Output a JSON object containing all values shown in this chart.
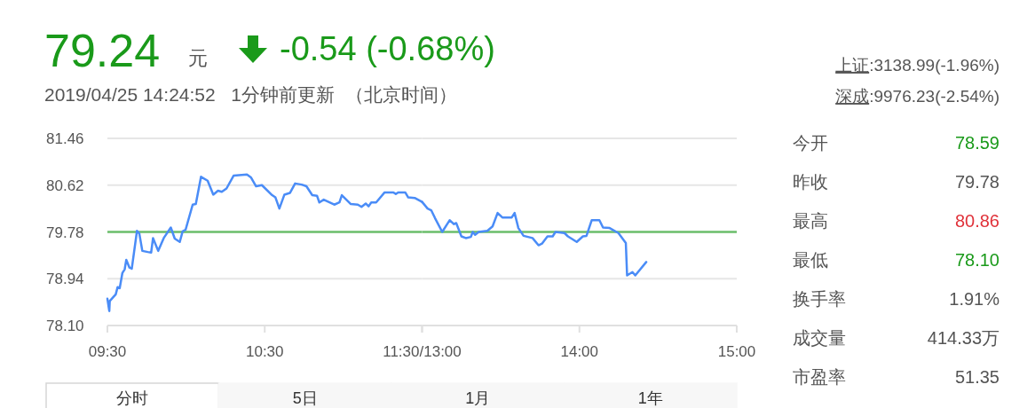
{
  "chart_data": [
    {
      "type": "line",
      "title": "79.24",
      "subtitle": "2019/04/25 14:24:52   1分钟前更新  （北京时间）",
      "annotations": [
        "元",
        "-0.54 (-0.68%)",
        "分时",
        "5日",
        "1月",
        "1年"
      ],
      "xlim": [
        9.5,
        11.5
      ],
      "xticks": [
        {
          "value": 9.5,
          "label": "09:30"
        },
        {
          "value": 10.5,
          "label": "10:30"
        },
        {
          "value": 11.5,
          "label": "11:30/13:00"
        }
      ],
      "ylim": [
        78.1,
        81.46
      ],
      "yticks": [
        {
          "value": 78.1,
          "label": "78.10"
        },
        78.94,
        79.78,
        80.62,
        81.46
      ],
      "grid": "y",
      "ref_lines": [
        {
          "axis": "y",
          "value": 79.78,
          "color": "#6cbf6c"
        }
      ],
      "series": [
        {
          "color": "#4a8cf7",
          "x": [
            9.5,
            9.512,
            9.515,
            9.553,
            9.565,
            9.578,
            9.595,
            9.61,
            9.62,
            9.64,
            9.655,
            9.688,
            9.703,
            9.722,
            9.757,
            9.778,
            9.79,
            9.823,
            9.858,
            9.903,
            9.928,
            9.96,
            9.978,
            9.997,
            10.042,
            10.062,
            10.095,
            10.137,
            10.173,
            10.203,
            10.227,
            10.257,
            10.302,
            10.387,
            10.412,
            10.445,
            10.482,
            10.547,
            10.568,
            10.593,
            10.625,
            10.66,
            10.693,
            10.735,
            10.765,
            10.802,
            10.832,
            10.847,
            10.875,
            10.942,
            10.975,
            10.99,
            11.047,
            11.092,
            11.115,
            11.142,
            11.16,
            11.177,
            11.208,
            11.262,
            11.318,
            11.333,
            11.348,
            11.393,
            11.412,
            11.453,
            11.5
          ],
          "values": [
            78.58,
            78.36,
            78.54,
            78.66,
            78.79,
            78.77,
            79.04,
            79.11,
            79.28,
            79.14,
            79.12,
            79.8,
            79.75,
            79.44,
            79.42,
            79.41,
            79.67,
            79.44,
            79.67,
            79.86,
            79.66,
            79.6,
            79.79,
            79.82,
            80.27,
            80.28,
            80.77,
            80.7,
            80.45,
            80.52,
            80.5,
            80.56,
            80.79,
            80.81,
            80.76,
            80.6,
            80.62,
            80.44,
            80.4,
            80.2,
            80.45,
            80.48,
            80.65,
            80.63,
            80.6,
            80.44,
            80.43,
            80.31,
            80.36,
            80.27,
            80.31,
            80.44,
            80.28,
            80.27,
            80.23,
            80.29,
            80.24,
            80.31,
            80.31,
            80.49,
            80.49,
            80.46,
            80.49,
            80.49,
            80.4,
            80.39,
            80.32
          ]
        }
      ]
    },
    {
      "type": "line",
      "xlim": [
        13,
        15
      ],
      "xticks": [
        {
          "value": 13,
          "label": null
        },
        {
          "value": 14,
          "label": "14:00"
        },
        {
          "value": 15,
          "label": "15:00"
        }
      ],
      "ylim": [
        78.1,
        81.46
      ],
      "tick_labels": "x",
      "yticks": [
        78.1,
        78.94,
        79.78,
        80.62,
        81.46
      ],
      "grid": "y",
      "ref_lines": [
        {
          "axis": "y",
          "value": 79.78,
          "color": "#6cbf6c"
        }
      ],
      "series": [
        {
          "color": "#4a8cf7",
          "x": [
            13,
            13.035,
            13.058,
            13.082,
            13.128,
            13.175,
            13.203,
            13.217,
            13.25,
            13.278,
            13.31,
            13.322,
            13.337,
            13.36,
            13.415,
            13.448,
            13.48,
            13.51,
            13.57,
            13.588,
            13.612,
            13.645,
            13.702,
            13.74,
            13.762,
            13.797,
            13.83,
            13.848,
            13.905,
            13.927,
            13.983,
            14.022,
            14.045,
            14.078,
            14.127,
            14.15,
            14.192,
            14.248,
            14.295,
            14.303,
            14.337,
            14.355,
            14.425
          ],
          "values": [
            80.32,
            80.2,
            80.17,
            80.03,
            79.78,
            79.99,
            79.92,
            79.94,
            79.7,
            79.67,
            79.69,
            79.78,
            79.73,
            79.78,
            79.8,
            79.88,
            80.12,
            80.04,
            80.04,
            80.12,
            79.85,
            79.71,
            79.67,
            79.54,
            79.57,
            79.7,
            79.7,
            79.78,
            79.76,
            79.7,
            79.6,
            79.7,
            79.71,
            79.99,
            79.99,
            79.86,
            79.85,
            79.76,
            79.58,
            79.0,
            79.06,
            79.0,
            79.24
          ]
        }
      ]
    },
    {
      "type": "other",
      "annotations": [
        "上证:3138.99(-1.96%)",
        "深成:9976.23(-2.54%)"
      ],
      "categories": [
        "今开",
        "昨收",
        "最高",
        "最低",
        "换手率",
        "成交量",
        "市盈率"
      ],
      "value_labels": [
        "78.59",
        "79.78",
        "80.86",
        "78.10",
        "1.91%",
        "414.33万",
        "51.35"
      ],
      "colors": [
        "#1a9a1a",
        "#555555",
        "#e0323a",
        "#1a9a1a",
        "#555555",
        "#555555",
        "#555555"
      ]
    }
  ]
}
